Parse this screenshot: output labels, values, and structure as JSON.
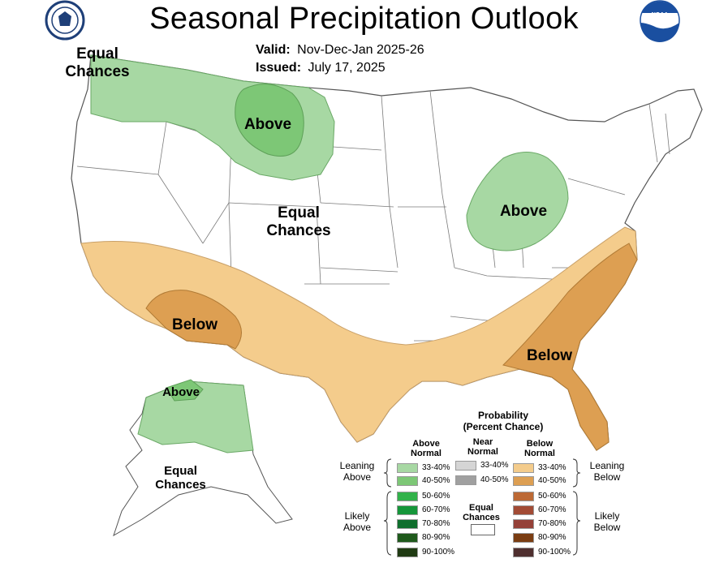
{
  "title": "Seasonal Precipitation Outlook",
  "valid_label": "Valid:",
  "valid_value": "Nov-Dec-Jan 2025-26",
  "issued_label": "Issued:",
  "issued_value": "July 17, 2025",
  "logos": {
    "left": "doc-seal",
    "right": "noaa-logo",
    "noaa_text": "NOAA"
  },
  "regions": {
    "equal_chances_nw": [
      "Equal",
      "Chances"
    ],
    "above_north": "Above",
    "equal_chances_center": [
      "Equal",
      "Chances"
    ],
    "above_midwest": "Above",
    "below_sw": "Below",
    "below_se": "Below",
    "above_alaska": "Above",
    "equal_chances_alaska": [
      "Equal",
      "Chances"
    ]
  },
  "legend": {
    "title": [
      "Probability",
      "(Percent Chance)"
    ],
    "above_head": [
      "Above",
      "Normal"
    ],
    "near_head": [
      "Near",
      "Normal"
    ],
    "below_head": [
      "Below",
      "Normal"
    ],
    "leaning_above": [
      "Leaning",
      "Above"
    ],
    "likely_above": [
      "Likely",
      "Above"
    ],
    "leaning_below": [
      "Leaning",
      "Below"
    ],
    "likely_below": [
      "Likely",
      "Below"
    ],
    "equal_chances": [
      "Equal",
      "Chances"
    ],
    "above": [
      {
        "range": "33-40%",
        "color": "#a7d8a3"
      },
      {
        "range": "40-50%",
        "color": "#7dc776"
      },
      {
        "range": "50-60%",
        "color": "#32b24a"
      },
      {
        "range": "60-70%",
        "color": "#15963a"
      },
      {
        "range": "70-80%",
        "color": "#0f6f2d"
      },
      {
        "range": "80-90%",
        "color": "#1f5a1c"
      },
      {
        "range": "90-100%",
        "color": "#203b13"
      }
    ],
    "near": [
      {
        "range": "33-40%",
        "color": "#d5d5d5"
      },
      {
        "range": "40-50%",
        "color": "#a0a0a0"
      }
    ],
    "below": [
      {
        "range": "33-40%",
        "color": "#f4cc8c"
      },
      {
        "range": "40-50%",
        "color": "#dd9f52"
      },
      {
        "range": "50-60%",
        "color": "#bc6935"
      },
      {
        "range": "60-70%",
        "color": "#a24b35"
      },
      {
        "range": "70-80%",
        "color": "#954138"
      },
      {
        "range": "80-90%",
        "color": "#7a3d12"
      },
      {
        "range": "90-100%",
        "color": "#4f2f2f"
      }
    ]
  }
}
